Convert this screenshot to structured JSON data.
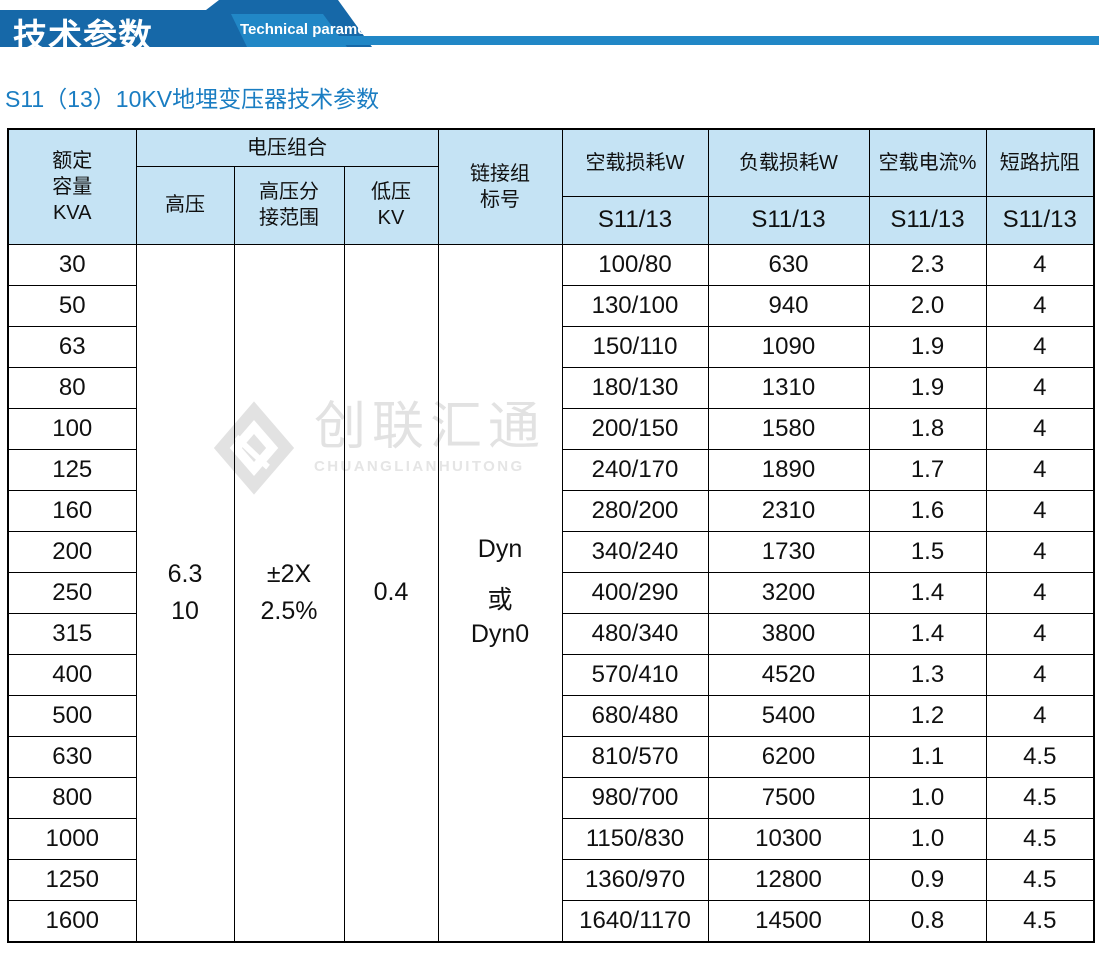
{
  "banner": {
    "title_cn": "技术参数",
    "title_en": "Technical parameter"
  },
  "page_title": "S11（13）10KV地埋变压器技术参数",
  "watermark": {
    "cn": "创联汇通",
    "en": "CHUANGLIANHUITONG"
  },
  "colors": {
    "banner_dark_blue": "#1668a8",
    "banner_light_blue": "#2187c6",
    "title_blue": "#1a7dc2",
    "table_header_bg": "#c5e3f4",
    "table_border": "#000000",
    "watermark_gray": "#e2e2e2"
  },
  "table": {
    "header": {
      "capacity_lines": [
        "额定",
        "容量",
        "KVA"
      ],
      "voltage_group": "电压组合",
      "hv": "高压",
      "hv_tap_lines": [
        "高压分",
        "接范围"
      ],
      "lv_lines": [
        "低压",
        "KV"
      ],
      "connection_lines": [
        "链接组",
        "标号"
      ],
      "no_load_loss": "空载损耗W",
      "load_loss": "负载损耗W",
      "no_load_current": "空载电流%",
      "impedance": "短路抗阻",
      "model": "S11/13"
    },
    "merged": {
      "hv_lines": [
        "6.3",
        "10"
      ],
      "tap_lines": [
        "±2X",
        "2.5%"
      ],
      "lv": "0.4",
      "connection_lines": [
        "Dyn",
        "或",
        "Dyn0"
      ]
    },
    "rows": [
      {
        "kva": "30",
        "no_load_loss": "100/80",
        "load_loss": "630",
        "no_load_current": "2.3",
        "impedance": "4"
      },
      {
        "kva": "50",
        "no_load_loss": "130/100",
        "load_loss": "940",
        "no_load_current": "2.0",
        "impedance": "4"
      },
      {
        "kva": "63",
        "no_load_loss": "150/110",
        "load_loss": "1090",
        "no_load_current": "1.9",
        "impedance": "4"
      },
      {
        "kva": "80",
        "no_load_loss": "180/130",
        "load_loss": "1310",
        "no_load_current": "1.9",
        "impedance": "4"
      },
      {
        "kva": "100",
        "no_load_loss": "200/150",
        "load_loss": "1580",
        "no_load_current": "1.8",
        "impedance": "4"
      },
      {
        "kva": "125",
        "no_load_loss": "240/170",
        "load_loss": "1890",
        "no_load_current": "1.7",
        "impedance": "4"
      },
      {
        "kva": "160",
        "no_load_loss": "280/200",
        "load_loss": "2310",
        "no_load_current": "1.6",
        "impedance": "4"
      },
      {
        "kva": "200",
        "no_load_loss": "340/240",
        "load_loss": "1730",
        "no_load_current": "1.5",
        "impedance": "4"
      },
      {
        "kva": "250",
        "no_load_loss": "400/290",
        "load_loss": "3200",
        "no_load_current": "1.4",
        "impedance": "4"
      },
      {
        "kva": "315",
        "no_load_loss": "480/340",
        "load_loss": "3800",
        "no_load_current": "1.4",
        "impedance": "4"
      },
      {
        "kva": "400",
        "no_load_loss": "570/410",
        "load_loss": "4520",
        "no_load_current": "1.3",
        "impedance": "4"
      },
      {
        "kva": "500",
        "no_load_loss": "680/480",
        "load_loss": "5400",
        "no_load_current": "1.2",
        "impedance": "4"
      },
      {
        "kva": "630",
        "no_load_loss": "810/570",
        "load_loss": "6200",
        "no_load_current": "1.1",
        "impedance": "4.5"
      },
      {
        "kva": "800",
        "no_load_loss": "980/700",
        "load_loss": "7500",
        "no_load_current": "1.0",
        "impedance": "4.5"
      },
      {
        "kva": "1000",
        "no_load_loss": "1150/830",
        "load_loss": "10300",
        "no_load_current": "1.0",
        "impedance": "4.5"
      },
      {
        "kva": "1250",
        "no_load_loss": "1360/970",
        "load_loss": "12800",
        "no_load_current": "0.9",
        "impedance": "4.5"
      },
      {
        "kva": "1600",
        "no_load_loss": "1640/1170",
        "load_loss": "14500",
        "no_load_current": "0.8",
        "impedance": "4.5"
      }
    ]
  }
}
